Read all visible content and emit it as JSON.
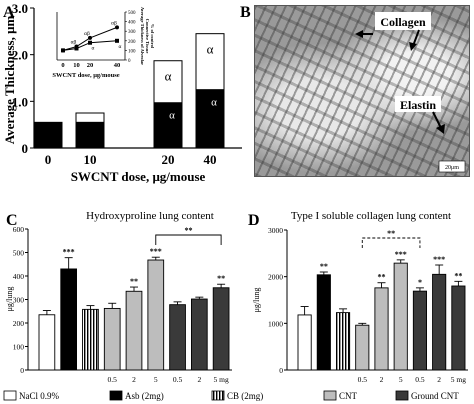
{
  "panels": {
    "A": {
      "letter": "A",
      "chart_data": {
        "type": "bar",
        "stacked": true,
        "ylabel": "Average Thickness, μm",
        "xlabel": "SWCNT dose, μg/mouse",
        "categories": [
          "0",
          "10",
          "20",
          "40"
        ],
        "ylim": [
          0,
          3.0
        ],
        "yticks": [
          "0",
          "1.0",
          "2.0",
          "3.0"
        ],
        "series": [
          {
            "fill": "#000000",
            "values": [
              0.55,
              0.55,
              0.97,
              1.25
            ]
          },
          {
            "fill": "#ffffff",
            "values": [
              0.0,
              0.2,
              0.9,
              1.2
            ]
          }
        ],
        "bar_labels": [
          "",
          "",
          "α",
          "α"
        ],
        "lower_labels": [
          "",
          "",
          "α",
          "α"
        ]
      },
      "inset": {
        "xlabel": "SWCNT dose,\nμg/mouse",
        "xticks": [
          "0",
          "10",
          "20",
          "40"
        ],
        "yticks": [
          "0",
          "100",
          "200",
          "300",
          "400",
          "500"
        ],
        "ylabel_lines": [
          "Average Thickness of Alveolar",
          "Connective Tissue",
          "% of control"
        ],
        "chart_data": {
          "type": "line",
          "x": [
            0,
            10,
            20,
            40
          ],
          "ylim": [
            0,
            500
          ],
          "series": [
            {
              "values": [
                100,
                140,
                230,
                340
              ],
              "marker": "filled-circle"
            },
            {
              "values": [
                100,
                120,
                180,
                200
              ],
              "marker": "filled-square"
            }
          ],
          "point_labels_upper": [
            "",
            "αβ",
            "αβ",
            "αβ"
          ],
          "point_labels_lower": [
            "",
            "",
            "α",
            "α"
          ]
        }
      }
    },
    "B": {
      "letter": "B",
      "labels": {
        "collagen": "Collagen",
        "elastin": "Elastin",
        "scale": "20μm"
      }
    },
    "C": {
      "letter": "C",
      "chart_data": {
        "type": "bar",
        "title": "Hydroxyproline lung content",
        "ylabel": "μg/lung",
        "ylim": [
          0,
          600
        ],
        "yticks": [
          "0",
          "100",
          "200",
          "300",
          "400",
          "500",
          "600"
        ],
        "categories": [
          "NaCl 0.9%",
          "Asb (2mg)",
          "CB (2mg)",
          "CNT 0.5",
          "CNT 2",
          "CNT 5",
          "Ground CNT 0.5",
          "Ground CNT 2",
          "Ground CNT 5"
        ],
        "xtick_labels": [
          "",
          "",
          "",
          "0.5",
          "2",
          "5",
          "0.5",
          "2",
          "5 mg"
        ],
        "values": [
          235,
          430,
          258,
          262,
          335,
          468,
          278,
          302,
          350
        ],
        "errors": [
          18,
          48,
          16,
          22,
          18,
          12,
          12,
          8,
          15
        ],
        "significance": [
          "",
          "***",
          "",
          "",
          "**",
          "***",
          "",
          "",
          "**"
        ],
        "bracket_label": "**"
      }
    },
    "D": {
      "letter": "D",
      "chart_data": {
        "type": "bar",
        "title": "Type I soluble collagen lung content",
        "ylabel": "μg/lung",
        "ylim": [
          0,
          3000
        ],
        "yticks": [
          "0",
          "1000",
          "2000",
          "3000"
        ],
        "categories": [
          "NaCl 0.9%",
          "Asb (2mg)",
          "CB (2mg)",
          "CNT 0.5",
          "CNT 2",
          "CNT 5",
          "Ground CNT 0.5",
          "Ground CNT 2",
          "Ground CNT 5"
        ],
        "xtick_labels": [
          "",
          "",
          "",
          "0.5",
          "2",
          "5",
          "0.5",
          "2",
          "5 mg"
        ],
        "values": [
          1180,
          2040,
          1230,
          960,
          1760,
          2290,
          1690,
          2050,
          1800
        ],
        "errors": [
          180,
          60,
          80,
          40,
          110,
          70,
          70,
          200,
          100
        ],
        "significance": [
          "",
          "**",
          "",
          "",
          "**",
          "***",
          "*",
          "***",
          "**"
        ],
        "bracket_label": "**"
      }
    },
    "legend": [
      {
        "label": "NaCl 0.9%",
        "fill": "#ffffff"
      },
      {
        "label": "Asb (2mg)",
        "fill": "#000000"
      },
      {
        "label": "CB (2mg)",
        "fill": "stripes"
      },
      {
        "label": "CNT",
        "fill": "#bdbdbd"
      },
      {
        "label": "Ground CNT",
        "fill": "#3a3a3a"
      }
    ]
  }
}
